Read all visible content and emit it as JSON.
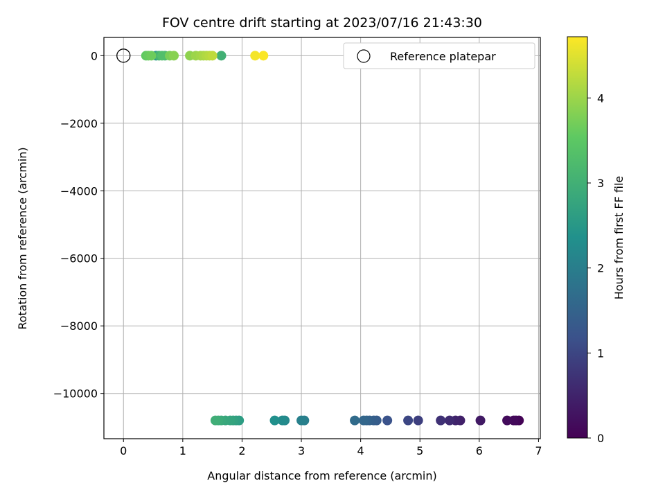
{
  "chart_data": {
    "type": "scatter",
    "title": "FOV centre drift starting at 2023/07/16 21:43:30",
    "xlabel": "Angular distance from reference (arcmin)",
    "ylabel": "Rotation from reference (arcmin)",
    "xlim": [
      -0.33,
      7.03
    ],
    "ylim": [
      -11340,
      540
    ],
    "xticks": [
      0,
      1,
      2,
      3,
      4,
      5,
      6,
      7
    ],
    "yticks": [
      0,
      -2000,
      -4000,
      -6000,
      -8000,
      -10000
    ],
    "ytick_labels": [
      "0",
      "−2000",
      "−4000",
      "−6000",
      "−8000",
      "−10000"
    ],
    "grid": true,
    "colormap": "viridis",
    "colorbar": {
      "label": "Hours from first FF file",
      "range": [
        0,
        4.72
      ],
      "ticks": [
        0,
        1,
        2,
        3,
        4
      ]
    },
    "legend": {
      "location": "top-right",
      "entries": [
        {
          "label": "Reference platepar",
          "marker": "open-circle"
        }
      ]
    },
    "reference_point": {
      "x": 0,
      "y": 0
    },
    "points": [
      {
        "x": 6.67,
        "y": -10800,
        "h": 0.03
      },
      {
        "x": 6.62,
        "y": -10800,
        "h": 0.08
      },
      {
        "x": 6.58,
        "y": -10800,
        "h": 0.12
      },
      {
        "x": 6.47,
        "y": -10800,
        "h": 0.15
      },
      {
        "x": 6.02,
        "y": -10800,
        "h": 0.35
      },
      {
        "x": 5.68,
        "y": -10800,
        "h": 0.45
      },
      {
        "x": 5.6,
        "y": -10800,
        "h": 0.5
      },
      {
        "x": 5.5,
        "y": -10800,
        "h": 0.6
      },
      {
        "x": 5.35,
        "y": -10800,
        "h": 0.7
      },
      {
        "x": 4.97,
        "y": -10800,
        "h": 0.9
      },
      {
        "x": 4.8,
        "y": -10800,
        "h": 1.0
      },
      {
        "x": 4.45,
        "y": -10800,
        "h": 1.2
      },
      {
        "x": 4.27,
        "y": -10800,
        "h": 1.35
      },
      {
        "x": 4.22,
        "y": -10800,
        "h": 1.4
      },
      {
        "x": 4.15,
        "y": -10800,
        "h": 1.45
      },
      {
        "x": 4.1,
        "y": -10800,
        "h": 1.5
      },
      {
        "x": 4.05,
        "y": -10800,
        "h": 1.55
      },
      {
        "x": 3.9,
        "y": -10800,
        "h": 1.65
      },
      {
        "x": 3.05,
        "y": -10800,
        "h": 2.0
      },
      {
        "x": 3.0,
        "y": -10800,
        "h": 2.05
      },
      {
        "x": 2.72,
        "y": -10800,
        "h": 2.2
      },
      {
        "x": 2.68,
        "y": -10800,
        "h": 2.25
      },
      {
        "x": 2.55,
        "y": -10800,
        "h": 2.35
      },
      {
        "x": 1.95,
        "y": -10800,
        "h": 2.6
      },
      {
        "x": 1.9,
        "y": -10800,
        "h": 2.65
      },
      {
        "x": 1.85,
        "y": -10800,
        "h": 2.7
      },
      {
        "x": 1.8,
        "y": -10800,
        "h": 2.75
      },
      {
        "x": 1.72,
        "y": -10800,
        "h": 2.8
      },
      {
        "x": 1.65,
        "y": -10800,
        "h": 2.85
      },
      {
        "x": 1.6,
        "y": -10800,
        "h": 2.9
      },
      {
        "x": 1.55,
        "y": -10800,
        "h": 2.95
      },
      {
        "x": 1.65,
        "y": 0,
        "h": 3.0
      },
      {
        "x": 0.55,
        "y": 0,
        "h": 2.5
      },
      {
        "x": 0.6,
        "y": 0,
        "h": 3.1
      },
      {
        "x": 0.7,
        "y": 0,
        "h": 3.2
      },
      {
        "x": 0.65,
        "y": 0,
        "h": 3.3
      },
      {
        "x": 0.38,
        "y": 0,
        "h": 3.55
      },
      {
        "x": 0.42,
        "y": 0,
        "h": 3.6
      },
      {
        "x": 0.47,
        "y": 0,
        "h": 3.65
      },
      {
        "x": 0.78,
        "y": 0,
        "h": 3.75
      },
      {
        "x": 0.85,
        "y": 0,
        "h": 3.85
      },
      {
        "x": 1.12,
        "y": 0,
        "h": 3.9
      },
      {
        "x": 1.22,
        "y": 0,
        "h": 4.0
      },
      {
        "x": 1.3,
        "y": 0,
        "h": 4.05
      },
      {
        "x": 1.35,
        "y": 0,
        "h": 4.1
      },
      {
        "x": 1.4,
        "y": 0,
        "h": 4.15
      },
      {
        "x": 1.45,
        "y": 0,
        "h": 4.2
      },
      {
        "x": 1.5,
        "y": 0,
        "h": 4.25
      },
      {
        "x": 2.22,
        "y": 0,
        "h": 4.65
      },
      {
        "x": 2.36,
        "y": 0,
        "h": 4.7
      }
    ]
  }
}
